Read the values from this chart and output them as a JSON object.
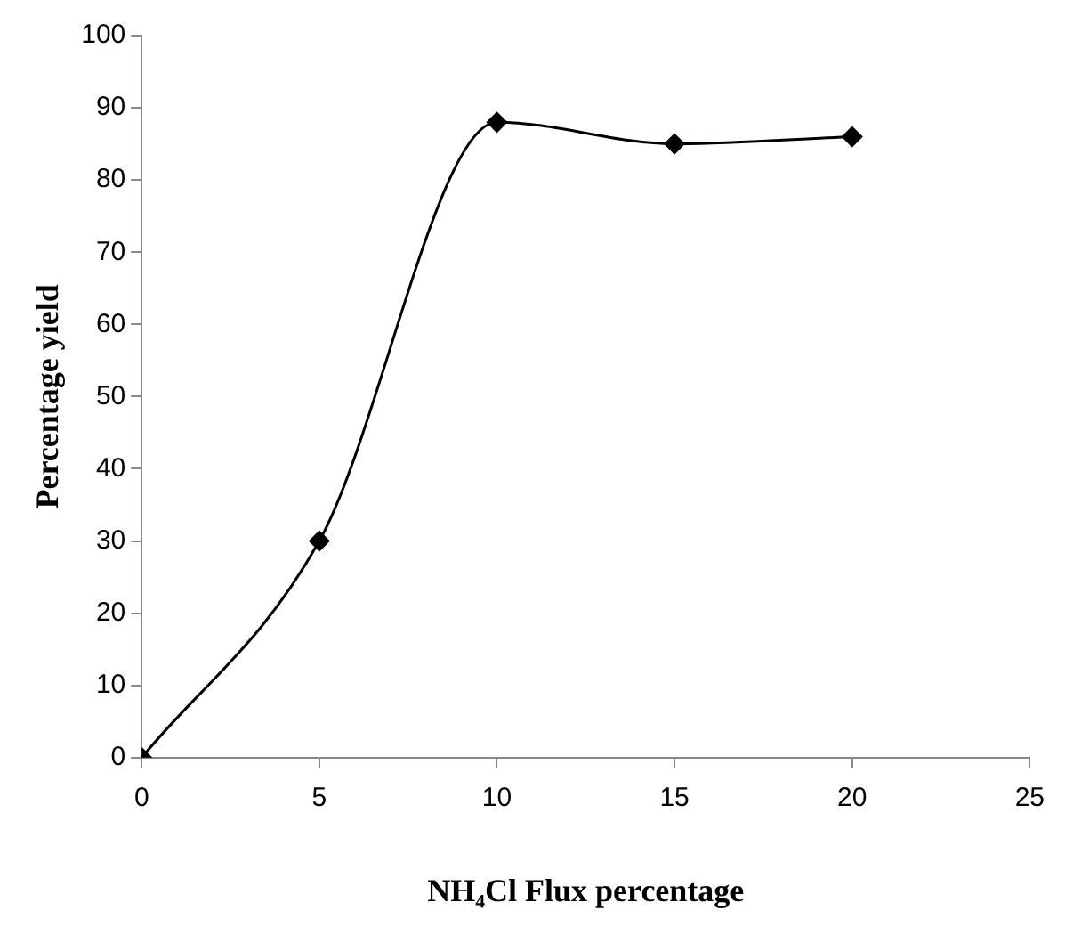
{
  "chart_data": {
    "type": "line",
    "xlabel": "NH₄Cl Flux percentage",
    "ylabel": "Percentage yield",
    "x": [
      0,
      5,
      10,
      15,
      20
    ],
    "series": [
      {
        "color": "#000000",
        "values": [
          0,
          30,
          88,
          85,
          86
        ]
      }
    ],
    "xlim": [
      0,
      25
    ],
    "xticks": [
      0,
      5,
      10,
      15,
      20,
      25
    ],
    "ylim": [
      0,
      100
    ],
    "yticks": [
      0,
      10,
      20,
      30,
      40,
      50,
      60,
      70,
      80,
      90,
      100
    ],
    "grid": false,
    "legend": false,
    "marker": "diamond",
    "line_style": "solid"
  }
}
